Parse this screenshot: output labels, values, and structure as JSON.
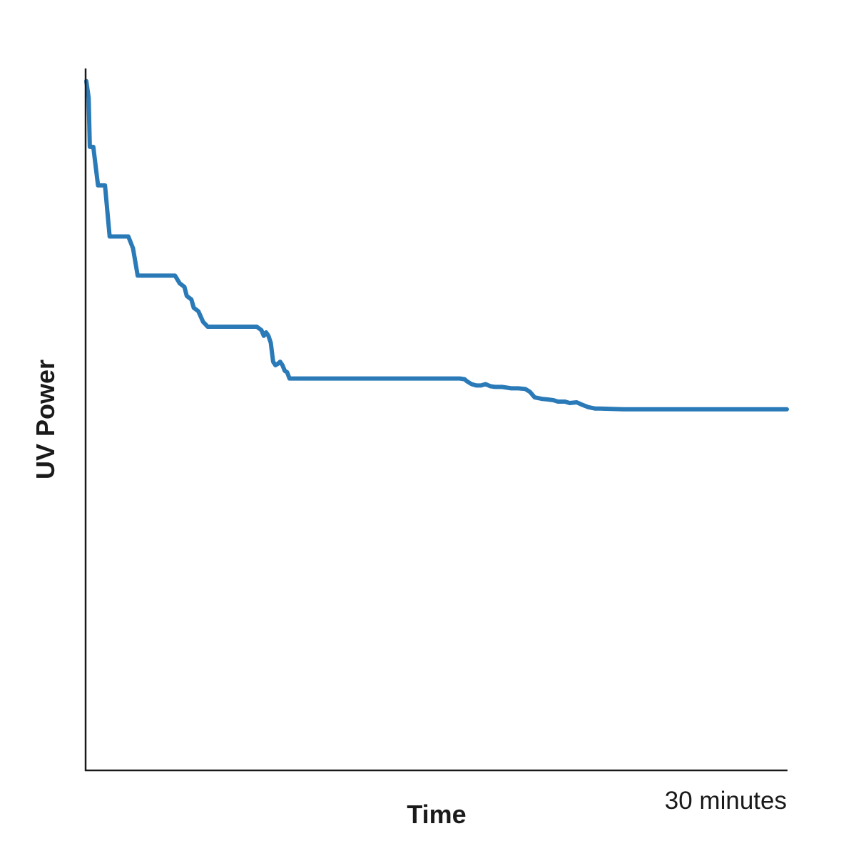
{
  "chart_data": {
    "type": "line",
    "title": "",
    "xlabel": "Time",
    "ylabel": "UV Power",
    "x_units": "minutes",
    "x_end_label": "30 minutes",
    "xlim": [
      0,
      30
    ],
    "ylim": [
      0,
      1
    ],
    "y_scale_note": "no y tick labels; values are relative fractions of axis height",
    "grid": false,
    "line_color": "#2a7ab8",
    "series": [
      {
        "x": [
          0.0,
          0.1,
          0.15,
          0.3,
          0.5,
          0.6,
          0.8,
          1.0,
          1.2,
          1.4,
          1.8,
          2.0,
          2.2,
          2.5,
          2.8,
          3.2,
          3.8,
          4.0,
          4.2,
          4.3,
          4.5,
          4.6,
          4.8,
          5.0,
          5.2,
          5.5,
          7.3,
          7.5,
          7.6,
          7.7,
          7.8,
          7.9,
          8.0,
          8.1,
          8.2,
          8.3,
          8.4,
          8.5,
          8.6,
          8.7,
          8.8,
          16.0,
          16.2,
          16.3,
          16.5,
          16.7,
          16.9,
          17.1,
          17.3,
          17.5,
          17.8,
          18.2,
          18.5,
          18.8,
          19.0,
          19.2,
          19.5,
          19.8,
          20.0,
          20.2,
          20.5,
          20.7,
          21.0,
          21.2,
          21.5,
          21.8,
          22.0,
          23.0,
          30.0
        ],
        "y": [
          0.984,
          0.96,
          0.89,
          0.89,
          0.835,
          0.835,
          0.835,
          0.762,
          0.762,
          0.762,
          0.762,
          0.745,
          0.706,
          0.706,
          0.706,
          0.706,
          0.706,
          0.695,
          0.69,
          0.677,
          0.672,
          0.66,
          0.655,
          0.64,
          0.633,
          0.633,
          0.633,
          0.628,
          0.62,
          0.625,
          0.62,
          0.61,
          0.583,
          0.578,
          0.58,
          0.583,
          0.578,
          0.57,
          0.568,
          0.559,
          0.559,
          0.559,
          0.558,
          0.555,
          0.551,
          0.549,
          0.549,
          0.551,
          0.548,
          0.547,
          0.547,
          0.545,
          0.545,
          0.544,
          0.54,
          0.532,
          0.53,
          0.529,
          0.528,
          0.526,
          0.526,
          0.524,
          0.525,
          0.522,
          0.518,
          0.516,
          0.516,
          0.515,
          0.515
        ]
      }
    ]
  }
}
